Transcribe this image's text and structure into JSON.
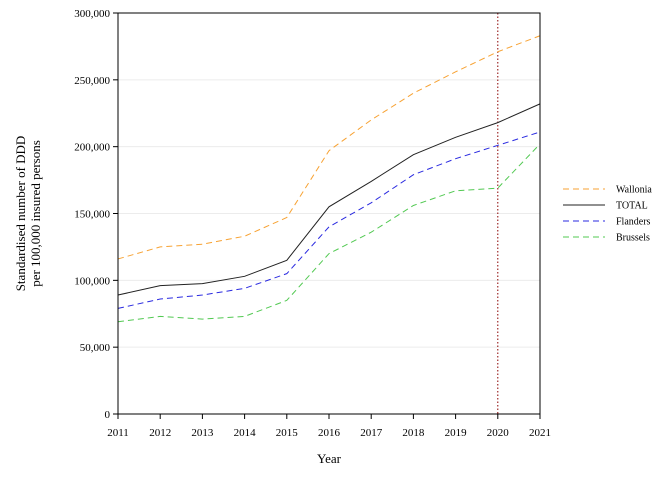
{
  "chart_data": {
    "type": "line",
    "title": "",
    "xlabel": "Year",
    "ylabel_lines": [
      "Standardised number of DDD",
      "per 100,000 insured persons"
    ],
    "x": [
      2011,
      2012,
      2013,
      2014,
      2015,
      2016,
      2017,
      2018,
      2019,
      2020,
      2021
    ],
    "x_tick_labels": [
      "2011",
      "2012",
      "2013",
      "2014",
      "2015",
      "2016",
      "2017",
      "2018",
      "2019",
      "2020",
      "2021"
    ],
    "ylim": [
      0,
      300000
    ],
    "y_ticks": [
      0,
      50000,
      100000,
      150000,
      200000,
      250000,
      300000
    ],
    "y_tick_labels": [
      "0",
      "50,000",
      "100,000",
      "150,000",
      "200,000",
      "250,000",
      "300,000"
    ],
    "grid": "horizontal",
    "legend_position": "right",
    "reference_line": {
      "x": 2020,
      "style": "dotted",
      "color": "#8b0000"
    },
    "series": [
      {
        "name": "Wallonia",
        "color": "#f7a233",
        "style": "dashed",
        "values": [
          116000,
          125000,
          127000,
          133000,
          147000,
          197000,
          220000,
          240000,
          256000,
          271000,
          283000
        ]
      },
      {
        "name": "TOTAL",
        "color": "#222222",
        "style": "solid",
        "values": [
          89000,
          96000,
          97500,
          103000,
          115000,
          155000,
          174000,
          194000,
          207000,
          218000,
          232000
        ]
      },
      {
        "name": "Flanders",
        "color": "#2a2ae0",
        "style": "dashed",
        "values": [
          79000,
          86000,
          89000,
          94000,
          105000,
          140000,
          158000,
          179000,
          191000,
          201000,
          211000
        ]
      },
      {
        "name": "Brussels",
        "color": "#52c952",
        "style": "dashed",
        "values": [
          69000,
          73000,
          71000,
          73000,
          85000,
          120000,
          136000,
          156000,
          167000,
          169000,
          202000
        ]
      }
    ]
  }
}
